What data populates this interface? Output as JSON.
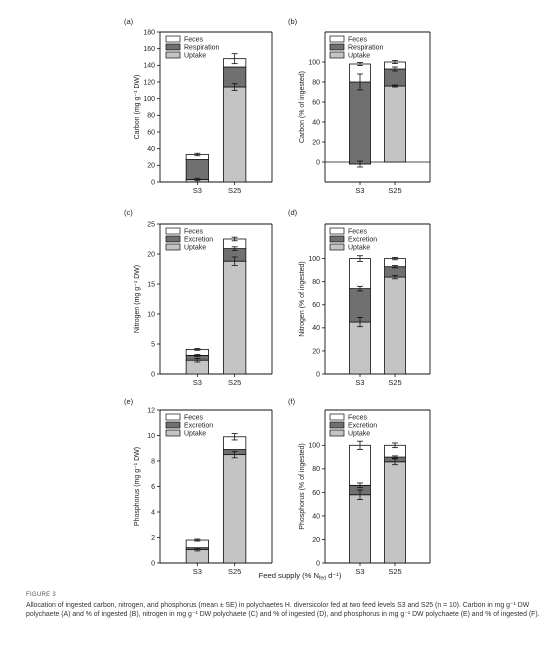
{
  "colors": {
    "feces": "#ffffff",
    "middle": "#707070",
    "uptake": "#c4c4c4",
    "stroke": "#111111"
  },
  "chart_data": [
    {
      "id": "a",
      "type": "bar",
      "stacked": true,
      "panel_label": "(a)",
      "categories": [
        "S3",
        "S25"
      ],
      "ylabel": "Carbon (mg g⁻¹ DW)",
      "ylim": [
        0,
        180
      ],
      "yticks": [
        0,
        20,
        40,
        60,
        80,
        100,
        120,
        140,
        160,
        180
      ],
      "legend": {
        "position": "top-left",
        "entries": [
          "Feces",
          "Respiration",
          "Uptake"
        ]
      },
      "series": [
        {
          "name": "Uptake",
          "values": [
            3,
            114
          ]
        },
        {
          "name": "Respiration",
          "values": [
            24,
            24
          ]
        },
        {
          "name": "Feces",
          "values": [
            6,
            10
          ]
        }
      ],
      "error_top": [
        1.5,
        6
      ],
      "error_uptake": [
        1.5,
        4
      ]
    },
    {
      "id": "b",
      "type": "bar",
      "stacked": true,
      "panel_label": "(b)",
      "categories": [
        "S3",
        "S25"
      ],
      "ylabel": "Carbon (% of ingested)",
      "ylim": [
        -20,
        130
      ],
      "yticks": [
        0,
        20,
        40,
        60,
        80,
        100
      ],
      "zero_line": true,
      "legend": {
        "position": "top-left",
        "entries": [
          "Feces",
          "Respiration",
          "Uptake"
        ]
      },
      "series": [
        {
          "name": "Uptake",
          "values": [
            -2,
            76
          ]
        },
        {
          "name": "Respiration",
          "values": [
            82,
            17
          ]
        },
        {
          "name": "Feces",
          "values": [
            18,
            7
          ]
        }
      ],
      "error_top": [
        1.5,
        1.5
      ],
      "error_uptake": [
        3,
        1
      ],
      "error_middle": [
        8,
        2
      ]
    },
    {
      "id": "c",
      "type": "bar",
      "stacked": true,
      "panel_label": "(c)",
      "categories": [
        "S3",
        "S25"
      ],
      "ylabel": "Nitrogen (mg g⁻¹ DW)",
      "ylim": [
        0,
        25
      ],
      "yticks": [
        0,
        5,
        10,
        15,
        20,
        25
      ],
      "legend": {
        "position": "top-left",
        "entries": [
          "Feces",
          "Excretion",
          "Uptake"
        ]
      },
      "series": [
        {
          "name": "Uptake",
          "values": [
            2.3,
            18.8
          ]
        },
        {
          "name": "Excretion",
          "values": [
            0.8,
            2.1
          ]
        },
        {
          "name": "Feces",
          "values": [
            1.0,
            1.6
          ]
        }
      ],
      "error_top": [
        0.15,
        0.3
      ],
      "error_uptake": [
        0.3,
        0.7
      ],
      "error_middle": [
        0.15,
        0.3
      ]
    },
    {
      "id": "d",
      "type": "bar",
      "stacked": true,
      "panel_label": "(d)",
      "categories": [
        "S3",
        "S25"
      ],
      "ylabel": "Nitrogen (% of ingested)",
      "ylim": [
        0,
        130
      ],
      "yticks": [
        0,
        20,
        40,
        60,
        80,
        100
      ],
      "legend": {
        "position": "top-left",
        "entries": [
          "Feces",
          "Excretion",
          "Uptake"
        ]
      },
      "series": [
        {
          "name": "Uptake",
          "values": [
            45,
            84
          ]
        },
        {
          "name": "Excretion",
          "values": [
            29,
            9
          ]
        },
        {
          "name": "Feces",
          "values": [
            26,
            7
          ]
        }
      ],
      "error_top": [
        2.5,
        1
      ],
      "error_uptake": [
        4,
        1.5
      ],
      "error_middle": [
        2,
        1
      ]
    },
    {
      "id": "e",
      "type": "bar",
      "stacked": true,
      "panel_label": "(e)",
      "categories": [
        "S3",
        "S25"
      ],
      "ylabel": "Phosphorus (mg g⁻¹ DW)",
      "ylim": [
        0,
        12
      ],
      "yticks": [
        0,
        2,
        4,
        6,
        8,
        10,
        12
      ],
      "legend": {
        "position": "top-left",
        "entries": [
          "Feces",
          "Excretion",
          "Uptake"
        ]
      },
      "series": [
        {
          "name": "Uptake",
          "values": [
            1.05,
            8.5
          ]
        },
        {
          "name": "Excretion",
          "values": [
            0.15,
            0.4
          ]
        },
        {
          "name": "Feces",
          "values": [
            0.6,
            1.0
          ]
        }
      ],
      "error_top": [
        0.08,
        0.25
      ],
      "error_uptake": [
        0.1,
        0.25
      ]
    },
    {
      "id": "f",
      "type": "bar",
      "stacked": true,
      "panel_label": "(f)",
      "categories": [
        "S3",
        "S25"
      ],
      "ylabel": "Phosphorus (% of ingested)",
      "ylim": [
        0,
        130
      ],
      "yticks": [
        0,
        20,
        40,
        60,
        80,
        100
      ],
      "legend": {
        "position": "top-left",
        "entries": [
          "Feces",
          "Excretion",
          "Uptake"
        ]
      },
      "series": [
        {
          "name": "Uptake",
          "values": [
            58,
            86
          ]
        },
        {
          "name": "Excretion",
          "values": [
            8,
            4
          ]
        },
        {
          "name": "Feces",
          "values": [
            34,
            10
          ]
        }
      ],
      "error_top": [
        3.5,
        2
      ],
      "error_uptake": [
        4,
        2.5
      ],
      "error_middle": [
        2,
        1
      ]
    }
  ],
  "shared_xlabel": "Feed supply (% N",
  "shared_xlabel_sub": "fed",
  "shared_xlabel_tail": " d⁻¹)",
  "figure_label": "FIGURE 3",
  "caption": "Allocation of ingested carbon, nitrogen, and phosphorus (mean ± SE) in polychaetes H. diversicolor fed at two feed levels S3 and S25 (n = 10). Carbon in mg g⁻¹ DW polychaete (A) and % of ingested (B), nitrogen in mg g⁻¹ DW polychaete (C) and % of ingested (D), and phosphorus in mg g⁻¹ DW polychaete (E) and % of ingested (F)."
}
